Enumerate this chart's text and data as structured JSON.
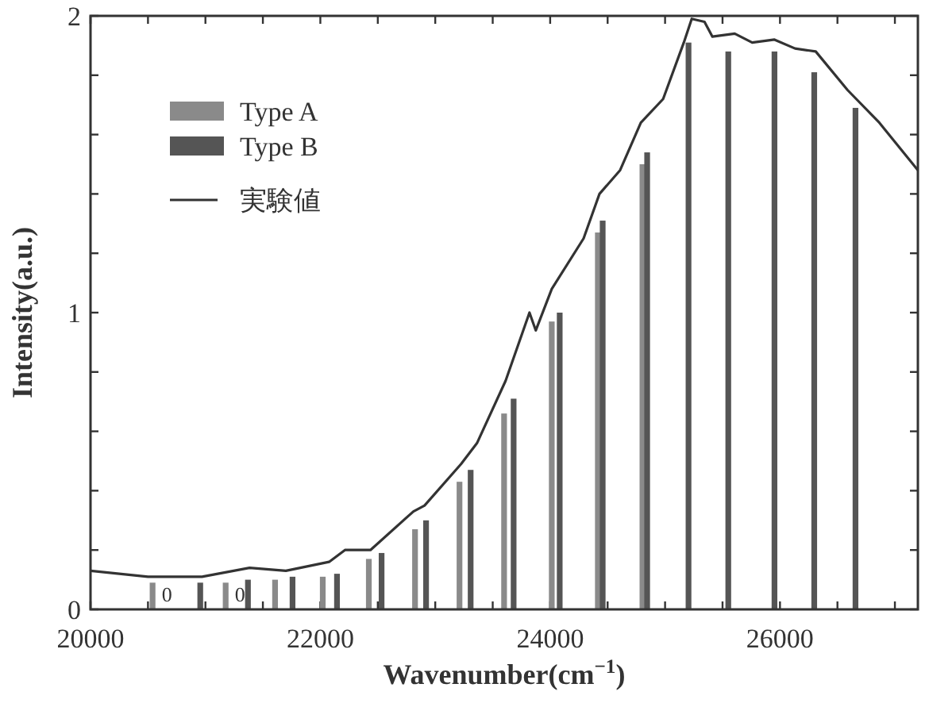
{
  "chart_data": {
    "type": "bar",
    "xlabel": "Wavenumber(cm$^{−1}$)",
    "ylabel": "Intensity(a.u.)",
    "xlim": [
      20000,
      27200
    ],
    "ylim": [
      0,
      2
    ],
    "xticks": [
      20000,
      {
        "value": 20500,
        "label": null
      },
      {
        "value": 21000,
        "label": null
      },
      {
        "value": 21500,
        "label": null
      },
      22000,
      {
        "value": 22500,
        "label": null
      },
      {
        "value": 23000,
        "label": null
      },
      {
        "value": 23500,
        "label": null
      },
      24000,
      {
        "value": 24500,
        "label": null
      },
      {
        "value": 25000,
        "label": null
      },
      {
        "value": 25500,
        "label": null
      },
      26000,
      {
        "value": 26500,
        "label": null
      },
      {
        "value": 27000,
        "label": null
      }
    ],
    "yticks": [
      0,
      {
        "value": 0.2,
        "label": null
      },
      {
        "value": 0.4,
        "label": null
      },
      {
        "value": 0.6,
        "label": null
      },
      {
        "value": 0.8,
        "label": null
      },
      1,
      {
        "value": 1.2,
        "label": null
      },
      {
        "value": 1.4,
        "label": null
      },
      {
        "value": 1.6,
        "label": null
      },
      {
        "value": 1.8,
        "label": null
      },
      2
    ],
    "legend": "top left",
    "grid": false,
    "annotations": [
      "0",
      "0"
    ],
    "series": [
      {
        "name": "Type A",
        "color": "#8a8a8a",
        "x": [
          20540,
          21176,
          21606,
          22021,
          22422,
          22824,
          23211,
          23599,
          24014,
          24415,
          24803
        ],
        "values": [
          0.09,
          0.09,
          0.1,
          0.11,
          0.17,
          0.27,
          0.43,
          0.66,
          0.97,
          1.27,
          1.5
        ]
      },
      {
        "name": "Type B",
        "color": "#555555",
        "x": [
          20955,
          21370,
          21758,
          22145,
          22533,
          22920,
          23308,
          23682,
          24083,
          24457,
          24844,
          25204,
          25550,
          25952,
          26298,
          26657
        ],
        "values": [
          0.09,
          0.1,
          0.11,
          0.12,
          0.19,
          0.3,
          0.47,
          0.71,
          1.0,
          1.31,
          1.54,
          1.91,
          1.88,
          1.88,
          1.81,
          1.69
        ]
      },
      {
        "name": "実験値",
        "type": "line",
        "color": "#333333",
        "x": [
          20000,
          20500,
          20970,
          21384,
          21700,
          22076,
          22214,
          22436,
          22810,
          22907,
          23225,
          23363,
          23612,
          23820,
          23875,
          24014,
          24291,
          24429,
          24609,
          24789,
          24983,
          25163,
          25232,
          25343,
          25412,
          25606,
          25758,
          25952,
          26131,
          26311,
          26588,
          26865,
          27200
        ],
        "values": [
          0.13,
          0.11,
          0.11,
          0.14,
          0.13,
          0.16,
          0.2,
          0.2,
          0.33,
          0.35,
          0.49,
          0.56,
          0.77,
          1.0,
          0.94,
          1.08,
          1.25,
          1.4,
          1.48,
          1.64,
          1.72,
          1.91,
          1.99,
          1.98,
          1.93,
          1.94,
          1.91,
          1.92,
          1.89,
          1.88,
          1.75,
          1.64,
          1.48
        ]
      }
    ]
  }
}
